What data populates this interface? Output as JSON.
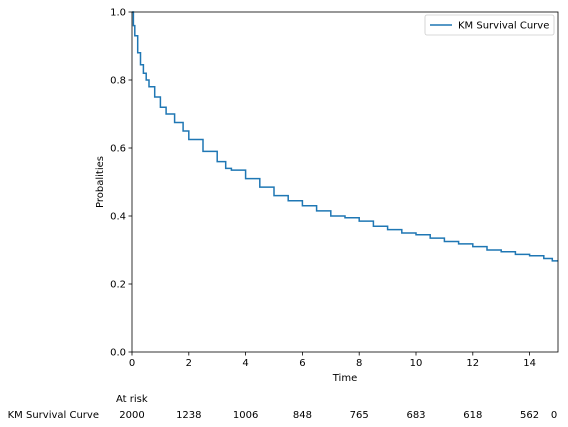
{
  "chart_data": {
    "type": "line",
    "title": "",
    "xlabel": "Time",
    "ylabel": "Probalities",
    "xlim": [
      0,
      15
    ],
    "ylim": [
      0.0,
      1.0
    ],
    "x_ticks": [
      0,
      2,
      4,
      6,
      8,
      10,
      12,
      14
    ],
    "y_ticks": [
      0.0,
      0.2,
      0.4,
      0.6,
      0.8,
      1.0
    ],
    "x_tick_labels": [
      "0",
      "2",
      "4",
      "6",
      "8",
      "10",
      "12",
      "14"
    ],
    "y_tick_labels": [
      "0.0",
      "0.2",
      "0.4",
      "0.6",
      "0.8",
      "1.0"
    ],
    "grid": false,
    "legend_position": "top-right",
    "series": [
      {
        "name": "KM Survival Curve",
        "color": "#1f77b4",
        "x": [
          0,
          0.05,
          0.1,
          0.2,
          0.3,
          0.4,
          0.5,
          0.6,
          0.8,
          1.0,
          1.2,
          1.5,
          1.8,
          2.0,
          2.5,
          3.0,
          3.3,
          3.5,
          4.0,
          4.5,
          5.0,
          5.5,
          6.0,
          6.5,
          7.0,
          7.5,
          8.0,
          8.5,
          9.0,
          9.5,
          10.0,
          10.5,
          11.0,
          11.5,
          12.0,
          12.5,
          13.0,
          13.5,
          14.0,
          14.5,
          14.8,
          15.0
        ],
        "y": [
          1.0,
          0.96,
          0.93,
          0.88,
          0.845,
          0.82,
          0.8,
          0.78,
          0.75,
          0.72,
          0.7,
          0.675,
          0.65,
          0.625,
          0.59,
          0.56,
          0.54,
          0.535,
          0.51,
          0.485,
          0.46,
          0.445,
          0.43,
          0.415,
          0.4,
          0.395,
          0.385,
          0.37,
          0.36,
          0.35,
          0.345,
          0.335,
          0.325,
          0.318,
          0.31,
          0.3,
          0.295,
          0.287,
          0.283,
          0.275,
          0.268,
          0.268
        ]
      }
    ],
    "at_risk": {
      "title": "At risk",
      "row_label": "KM Survival Curve",
      "times": [
        0,
        2,
        4,
        6,
        8,
        10,
        12,
        14
      ],
      "counts": [
        "2000",
        "1238",
        "1006",
        "848",
        "765",
        "683",
        "618",
        "562"
      ],
      "end_count": "0"
    }
  }
}
